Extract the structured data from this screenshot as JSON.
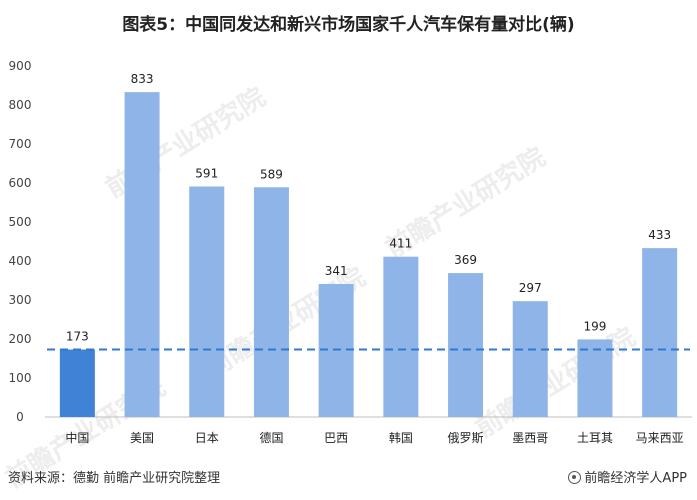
{
  "title": "图表5：中国同发达和新兴市场国家千人汽车保有量对比(辆)",
  "footer": {
    "source": "资料来源：德勤 前瞻产业研究院整理",
    "brand": "前瞻经济学人APP",
    "brand_icon": "brand-logo-icon"
  },
  "watermark": "前瞻产业研究院",
  "chart_data": {
    "type": "bar",
    "title": "图表5：中国同发达和新兴市场国家千人汽车保有量对比(辆)",
    "xlabel": "",
    "ylabel": "",
    "categories": [
      "中国",
      "美国",
      "日本",
      "德国",
      "巴西",
      "韩国",
      "俄罗斯",
      "墨西哥",
      "土耳其",
      "马来西亚"
    ],
    "values": [
      173,
      833,
      591,
      589,
      341,
      411,
      369,
      297,
      199,
      433
    ],
    "data_labels": [
      "173",
      "833",
      "591",
      "589",
      "341",
      "411",
      "369",
      "297",
      "199",
      "433"
    ],
    "ylim": [
      0,
      900
    ],
    "yticks": [
      "0",
      "100",
      "200",
      "300",
      "400",
      "500",
      "600",
      "700",
      "800",
      "900"
    ],
    "reference_line": 173,
    "grid": false,
    "colors": {
      "highlight": "#3f82d6",
      "bar": "#8eb4e8",
      "reference_line": "#2f7ad0"
    }
  }
}
